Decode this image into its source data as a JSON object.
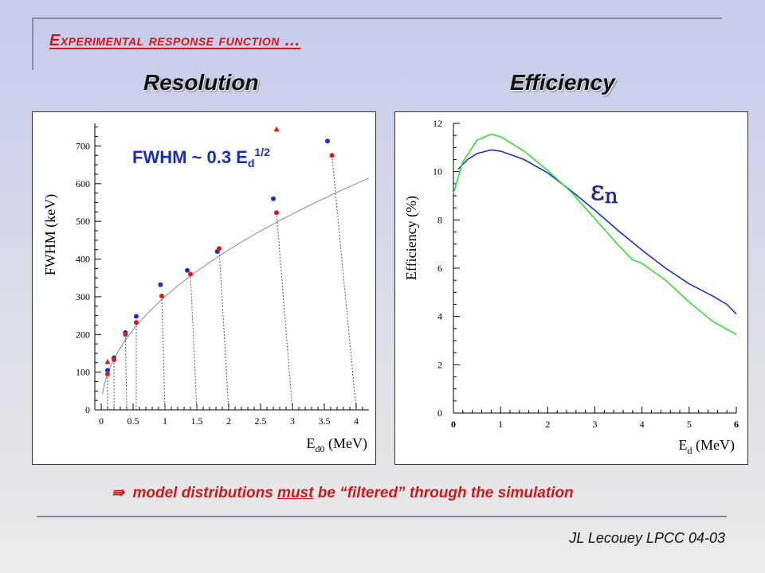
{
  "slide": {
    "title": "Experimental response function …",
    "left_heading": "Resolution",
    "right_heading": "Efficiency",
    "conclusion": {
      "arrow": "⇛",
      "part1": "model distributions",
      "must": "must",
      "part2": "be",
      "quoted": "“filtered”",
      "part3": "through the simulation"
    },
    "footer": "JL Lecouey LPCC 04-03"
  },
  "colors": {
    "title": "#cc1a1a",
    "blue": "#1a2fd0",
    "red": "#e01818",
    "green": "#2fe02f",
    "annot": "#1a2fb8"
  },
  "chart_data": [
    {
      "type": "scatter",
      "title": "",
      "xlabel": "E_d0 (MeV)",
      "ylabel": "FWHM (keV)",
      "xlim": [
        -0.1,
        4.2
      ],
      "ylim": [
        0,
        760
      ],
      "x_ticks": [
        "0",
        "0.5",
        "1",
        "1.5",
        "2",
        "2.5",
        "3",
        "3.5",
        "4"
      ],
      "y_ticks": [
        "0",
        "100",
        "200",
        "300",
        "400",
        "500",
        "600",
        "700"
      ],
      "annotation": {
        "text": "FWHM ~ 0.3 E",
        "sub": "d",
        "sup": "1/2"
      },
      "fit_curve": {
        "label": "FWHM ~ 0.3 E_d^1/2",
        "coef": 0.3
      },
      "series": [
        {
          "color": "blue",
          "marker": "circle",
          "points": [
            [
              0.1,
              105
            ],
            [
              0.2,
              138
            ],
            [
              0.38,
              205
            ],
            [
              0.55,
              248
            ],
            [
              0.93,
              332
            ],
            [
              1.35,
              370
            ],
            [
              1.82,
              420
            ],
            [
              2.7,
              560
            ],
            [
              3.55,
              713
            ]
          ]
        },
        {
          "color": "red",
          "marker": "circle",
          "points": [
            [
              0.1,
              95
            ],
            [
              0.2,
              133
            ],
            [
              0.38,
              200
            ],
            [
              0.55,
              232
            ],
            [
              0.95,
              302
            ],
            [
              1.4,
              360
            ],
            [
              1.85,
              428
            ],
            [
              2.75,
              523
            ],
            [
              3.62,
              675
            ]
          ]
        },
        {
          "color": "red",
          "marker": "triangle",
          "points": [
            [
              0.1,
              128
            ],
            [
              2.75,
              745
            ]
          ]
        }
      ],
      "dotted_links": [
        [
          0.1,
          0.1
        ],
        [
          0.2,
          0.2
        ],
        [
          0.38,
          0.4
        ],
        [
          0.55,
          0.55
        ],
        [
          0.95,
          1.0
        ],
        [
          1.4,
          1.5
        ],
        [
          1.85,
          2.0
        ],
        [
          2.75,
          3.0
        ],
        [
          3.62,
          4.0
        ]
      ]
    },
    {
      "type": "line",
      "title": "",
      "xlabel": "E_d (MeV)",
      "ylabel": "Efficiency (%)",
      "xlim": [
        0,
        6
      ],
      "ylim": [
        0,
        12
      ],
      "x_ticks": [
        "0",
        "1",
        "2",
        "3",
        "4",
        "5",
        "6"
      ],
      "y_ticks": [
        "0",
        "2",
        "4",
        "6",
        "8",
        "10",
        "12"
      ],
      "annotation": {
        "text": "ε",
        "sub": "n"
      },
      "series": [
        {
          "name": "",
          "color": "blue",
          "x": [
            0.1,
            0.3,
            0.5,
            0.8,
            1.0,
            1.5,
            2.0,
            2.5,
            3.0,
            3.5,
            4.0,
            4.5,
            5.0,
            5.5,
            5.8,
            6.0
          ],
          "y": [
            10.1,
            10.5,
            10.75,
            10.9,
            10.85,
            10.5,
            9.95,
            9.2,
            8.4,
            7.55,
            6.75,
            6.0,
            5.35,
            4.85,
            4.5,
            4.1
          ]
        },
        {
          "name": "",
          "color": "green",
          "x": [
            0.0,
            0.2,
            0.5,
            0.8,
            1.0,
            1.5,
            2.0,
            2.5,
            3.0,
            3.5,
            3.8,
            4.0,
            4.5,
            5.0,
            5.5,
            6.0
          ],
          "y": [
            9.1,
            10.4,
            11.3,
            11.55,
            11.45,
            10.85,
            10.05,
            9.15,
            8.05,
            6.95,
            6.35,
            6.2,
            5.5,
            4.6,
            3.8,
            3.25
          ]
        }
      ]
    }
  ]
}
